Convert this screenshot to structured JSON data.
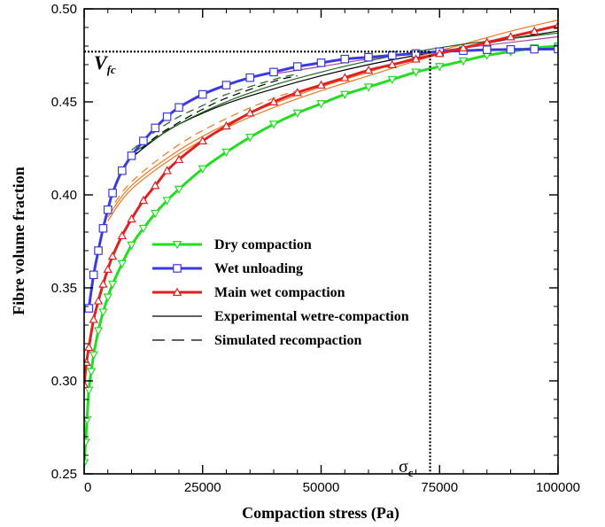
{
  "chart_data": {
    "type": "line",
    "title": "",
    "xlabel": "Compaction stress (Pa)",
    "ylabel": "Fibre volume fraction",
    "xlim": [
      0,
      100000
    ],
    "ylim": [
      0.25,
      0.5
    ],
    "xticks": [
      "0",
      "25000",
      "50000",
      "75000",
      "100000"
    ],
    "yticks": [
      "0.25",
      "0.30",
      "0.35",
      "0.40",
      "0.45",
      "0.50"
    ],
    "grid": false,
    "legend_position": "center-left",
    "annotations": {
      "vfc_main": "V",
      "vfc_sub": "fc",
      "vfc_value": 0.477,
      "sigma_main": "σ",
      "sigma_sub": "c",
      "sigma_value": 73000
    },
    "series": [
      {
        "name": "Dry compaction",
        "color": "#22dd22",
        "marker": "triangle-down",
        "style": "solid",
        "points": [
          [
            0,
            0.256
          ],
          [
            300,
            0.267
          ],
          [
            600,
            0.279
          ],
          [
            1000,
            0.295
          ],
          [
            1500,
            0.305
          ],
          [
            2000,
            0.314
          ],
          [
            3000,
            0.327
          ],
          [
            4000,
            0.337
          ],
          [
            5000,
            0.345
          ],
          [
            6000,
            0.352
          ],
          [
            8000,
            0.363
          ],
          [
            10000,
            0.373
          ],
          [
            12500,
            0.382
          ],
          [
            15000,
            0.39
          ],
          [
            17500,
            0.397
          ],
          [
            20000,
            0.403
          ],
          [
            25000,
            0.414
          ],
          [
            30000,
            0.423
          ],
          [
            35000,
            0.431
          ],
          [
            40000,
            0.438
          ],
          [
            45000,
            0.444
          ],
          [
            50000,
            0.449
          ],
          [
            55000,
            0.454
          ],
          [
            60000,
            0.458
          ],
          [
            65000,
            0.462
          ],
          [
            70000,
            0.466
          ],
          [
            75000,
            0.469
          ],
          [
            80000,
            0.472
          ],
          [
            85000,
            0.475
          ],
          [
            90000,
            0.477
          ],
          [
            95000,
            0.479
          ],
          [
            100000,
            0.48
          ]
        ]
      },
      {
        "name": "Wet unloading",
        "color": "#3b3bdd",
        "marker": "square",
        "style": "solid",
        "points": [
          [
            1000,
            0.339
          ],
          [
            2000,
            0.357
          ],
          [
            3000,
            0.37
          ],
          [
            4000,
            0.382
          ],
          [
            5000,
            0.392
          ],
          [
            6000,
            0.401
          ],
          [
            8000,
            0.413
          ],
          [
            10000,
            0.421
          ],
          [
            12500,
            0.429
          ],
          [
            15000,
            0.436
          ],
          [
            17500,
            0.442
          ],
          [
            20000,
            0.447
          ],
          [
            25000,
            0.454
          ],
          [
            30000,
            0.459
          ],
          [
            35000,
            0.463
          ],
          [
            40000,
            0.466
          ],
          [
            45000,
            0.469
          ],
          [
            50000,
            0.471
          ],
          [
            55000,
            0.473
          ],
          [
            60000,
            0.474
          ],
          [
            65000,
            0.475
          ],
          [
            70000,
            0.476
          ],
          [
            75000,
            0.477
          ],
          [
            80000,
            0.4775
          ],
          [
            85000,
            0.478
          ],
          [
            90000,
            0.4782
          ],
          [
            95000,
            0.4783
          ],
          [
            100000,
            0.4784
          ]
        ]
      },
      {
        "name": "Main wet compaction",
        "color": "#dd2222",
        "marker": "triangle-up",
        "style": "solid",
        "points": [
          [
            0,
            0.298
          ],
          [
            500,
            0.31
          ],
          [
            1000,
            0.318
          ],
          [
            2000,
            0.333
          ],
          [
            3000,
            0.343
          ],
          [
            4000,
            0.352
          ],
          [
            5000,
            0.36
          ],
          [
            6000,
            0.367
          ],
          [
            8000,
            0.378
          ],
          [
            10000,
            0.387
          ],
          [
            12500,
            0.397
          ],
          [
            15000,
            0.405
          ],
          [
            17500,
            0.413
          ],
          [
            20000,
            0.419
          ],
          [
            25000,
            0.429
          ],
          [
            30000,
            0.437
          ],
          [
            35000,
            0.444
          ],
          [
            40000,
            0.45
          ],
          [
            45000,
            0.455
          ],
          [
            50000,
            0.459
          ],
          [
            55000,
            0.463
          ],
          [
            60000,
            0.467
          ],
          [
            65000,
            0.47
          ],
          [
            70000,
            0.473
          ],
          [
            75000,
            0.476
          ],
          [
            80000,
            0.479
          ],
          [
            85000,
            0.482
          ],
          [
            90000,
            0.485
          ],
          [
            95000,
            0.488
          ],
          [
            100000,
            0.491
          ]
        ]
      },
      {
        "name": "Experimental wetre-compaction",
        "color": "#000000",
        "marker": "none",
        "style": "solid",
        "points": [
          [
            10000,
            0.42
          ],
          [
            15000,
            0.43
          ],
          [
            20000,
            0.438
          ],
          [
            30000,
            0.449
          ],
          [
            40000,
            0.457
          ],
          [
            50000,
            0.464
          ],
          [
            60000,
            0.47
          ],
          [
            70000,
            0.475
          ],
          [
            80000,
            0.479
          ],
          [
            90000,
            0.484
          ],
          [
            100000,
            0.488
          ]
        ]
      },
      {
        "name": "Simulated recompaction",
        "color": "#000000",
        "marker": "none",
        "style": "dashed",
        "points": [
          [
            10000,
            0.42
          ],
          [
            15000,
            0.431
          ],
          [
            20000,
            0.439
          ],
          [
            25000,
            0.446
          ],
          [
            30000,
            0.452
          ],
          [
            40000,
            0.461
          ],
          [
            45000,
            0.464
          ]
        ]
      },
      {
        "name": "",
        "color": "#ee7722",
        "marker": "none",
        "style": "solid",
        "points": [
          [
            5000,
            0.388
          ],
          [
            10000,
            0.405
          ],
          [
            20000,
            0.424
          ],
          [
            30000,
            0.438
          ],
          [
            40000,
            0.449
          ],
          [
            50000,
            0.458
          ],
          [
            60000,
            0.466
          ],
          [
            70000,
            0.474
          ],
          [
            80000,
            0.481
          ],
          [
            90000,
            0.488
          ],
          [
            100000,
            0.494
          ]
        ]
      },
      {
        "name": "",
        "color": "#ee7722",
        "marker": "none",
        "style": "solid",
        "points": [
          [
            5000,
            0.386
          ],
          [
            10000,
            0.403
          ],
          [
            20000,
            0.422
          ],
          [
            30000,
            0.436
          ],
          [
            40000,
            0.447
          ],
          [
            50000,
            0.456
          ],
          [
            60000,
            0.464
          ],
          [
            70000,
            0.472
          ],
          [
            80000,
            0.479
          ],
          [
            90000,
            0.485
          ],
          [
            100000,
            0.491
          ]
        ]
      },
      {
        "name": "",
        "color": "#ee7722",
        "marker": "none",
        "style": "dashed",
        "points": [
          [
            5000,
            0.39
          ],
          [
            10000,
            0.407
          ],
          [
            20000,
            0.427
          ],
          [
            30000,
            0.441
          ],
          [
            40000,
            0.452
          ],
          [
            45000,
            0.456
          ]
        ]
      },
      {
        "name": "",
        "color": "#1a6a1a",
        "marker": "none",
        "style": "solid",
        "points": [
          [
            10000,
            0.422
          ],
          [
            20000,
            0.438
          ],
          [
            30000,
            0.45
          ],
          [
            40000,
            0.459
          ],
          [
            50000,
            0.466
          ],
          [
            60000,
            0.472
          ],
          [
            70000,
            0.477
          ],
          [
            80000,
            0.481
          ],
          [
            90000,
            0.484
          ],
          [
            100000,
            0.487
          ]
        ]
      },
      {
        "name": "",
        "color": "#1a6a1a",
        "marker": "none",
        "style": "dashed",
        "points": [
          [
            10000,
            0.424
          ],
          [
            15000,
            0.434
          ],
          [
            20000,
            0.442
          ],
          [
            25000,
            0.448
          ],
          [
            30000,
            0.454
          ],
          [
            40000,
            0.462
          ],
          [
            45000,
            0.465
          ]
        ]
      },
      {
        "name": "",
        "color": "#aa44aa",
        "marker": "none",
        "style": "solid",
        "points": [
          [
            40000,
            0.465
          ],
          [
            50000,
            0.469
          ],
          [
            60000,
            0.473
          ],
          [
            70000,
            0.476
          ],
          [
            80000,
            0.479
          ],
          [
            90000,
            0.482
          ],
          [
            100000,
            0.485
          ]
        ]
      }
    ]
  }
}
